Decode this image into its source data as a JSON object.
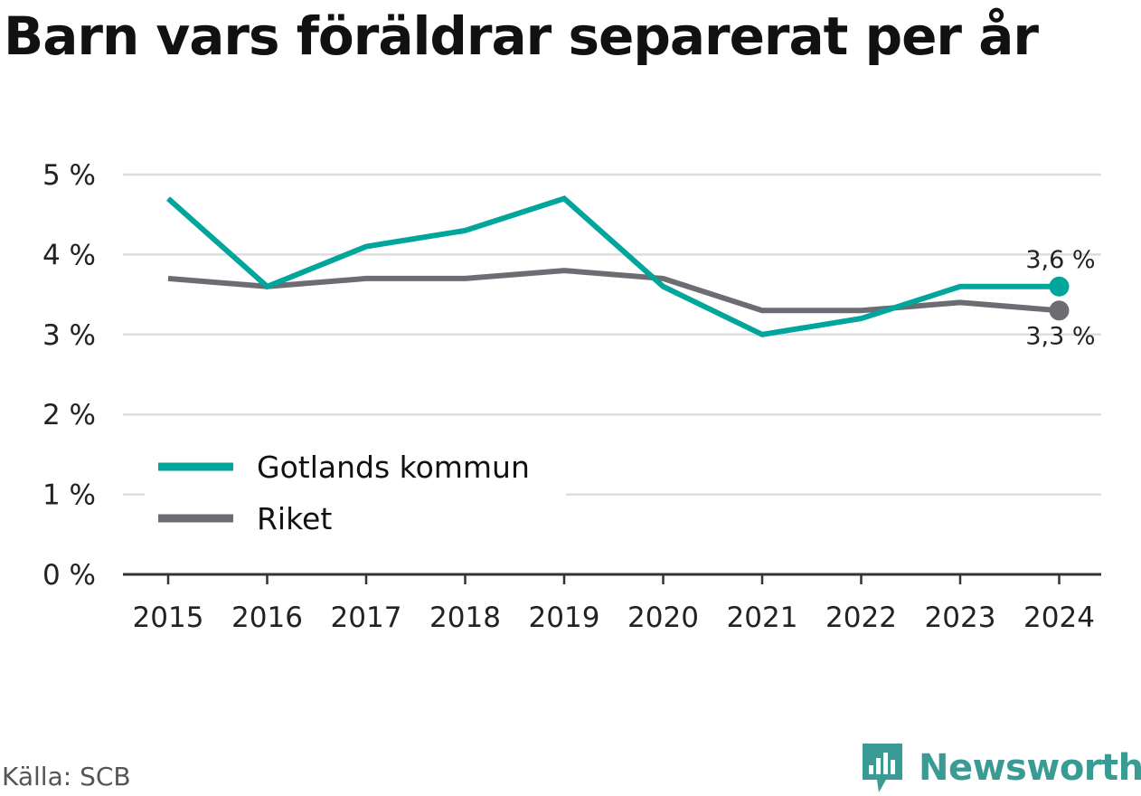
{
  "title": "Barn vars föräldrar separerat per år",
  "source": "Källa: SCB",
  "brand": {
    "name": "Newsworthy",
    "icon": "newsworthy-logo-icon"
  },
  "colors": {
    "gotland": "#00a59b",
    "riket": "#6d6c73",
    "grid": "#dddddd",
    "axis": "#333333",
    "brand": "#3a9a94"
  },
  "chart_data": {
    "type": "line",
    "title": "Barn vars föräldrar separerat per år",
    "x": [
      "2015",
      "2016",
      "2017",
      "2018",
      "2019",
      "2020",
      "2021",
      "2022",
      "2023",
      "2024"
    ],
    "series": [
      {
        "name": "Gotlands kommun",
        "values": [
          4.7,
          3.6,
          4.1,
          4.3,
          4.7,
          3.6,
          3.0,
          3.2,
          3.6,
          3.6
        ],
        "end_label": "3,6 %"
      },
      {
        "name": "Riket",
        "values": [
          3.7,
          3.6,
          3.7,
          3.7,
          3.8,
          3.7,
          3.3,
          3.3,
          3.4,
          3.3
        ],
        "end_label": "3,3 %"
      }
    ],
    "y_ticks": [
      "0 %",
      "1 %",
      "2 %",
      "3 %",
      "4 %",
      "5 %"
    ],
    "ylim": [
      0,
      5
    ],
    "grid": true,
    "legend": "bottom-left",
    "xlabel": "",
    "ylabel": ""
  }
}
